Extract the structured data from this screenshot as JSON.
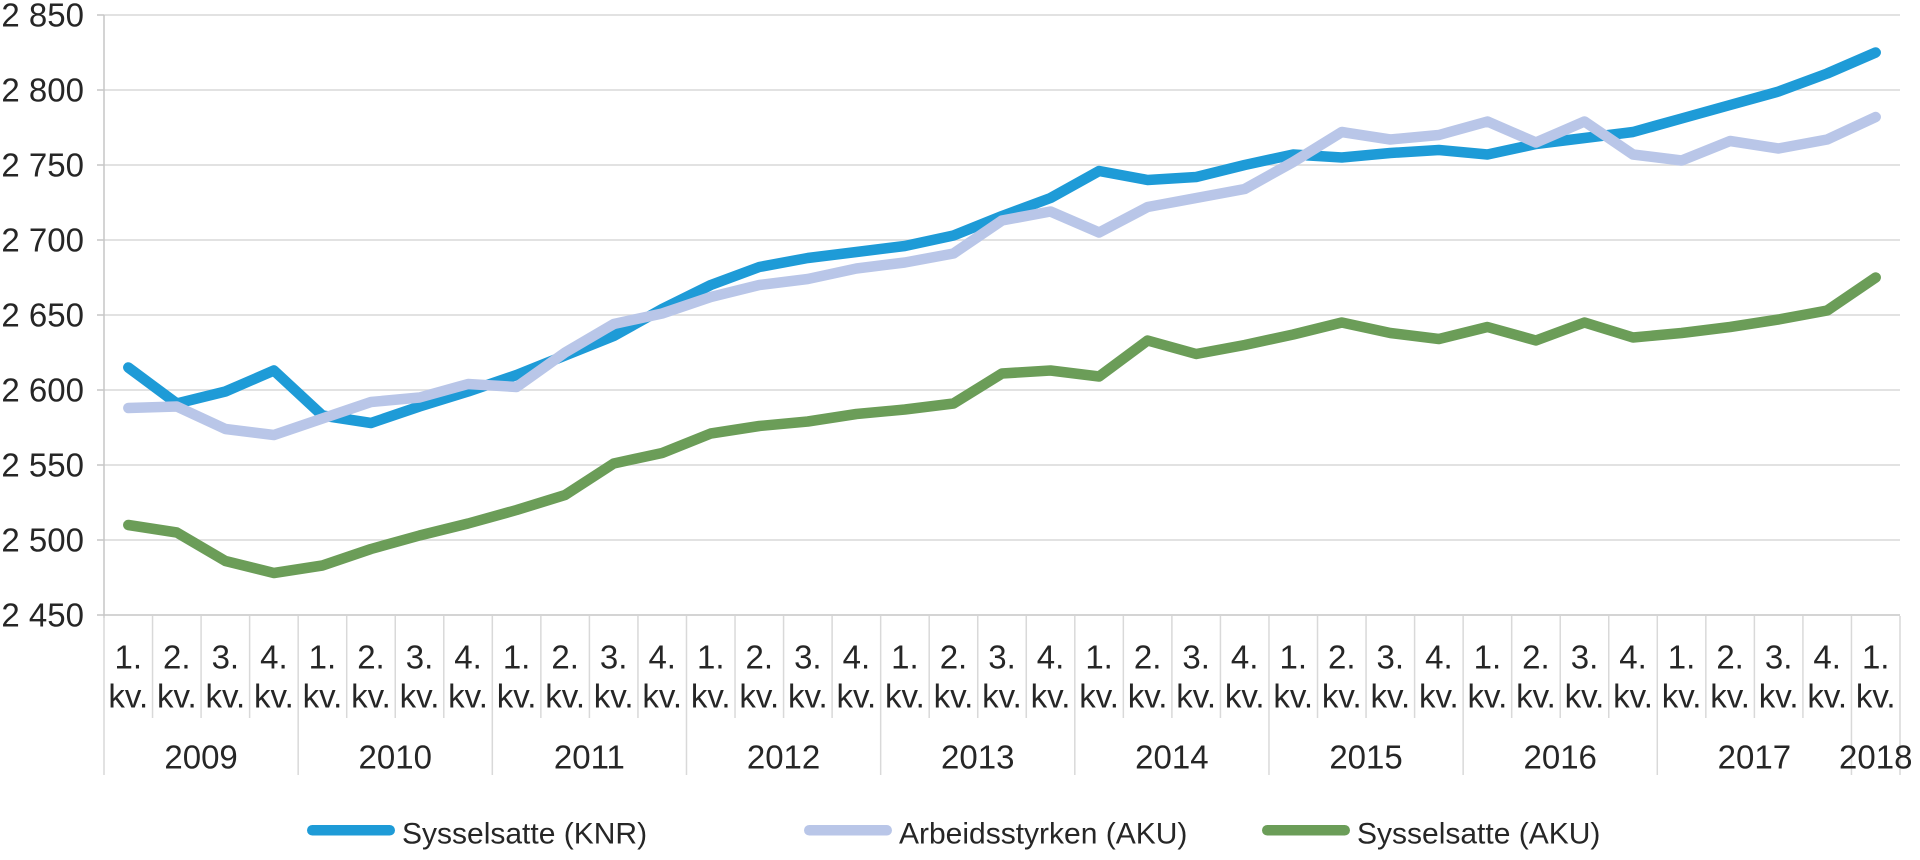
{
  "page": {
    "background": "#ffffff"
  },
  "styles": {
    "grid_color": "#d9d9d9",
    "axis_color": "#c6c6c6",
    "text_color": "#262626",
    "series_stroke_width": 10.5
  },
  "legend": {
    "items": [
      {
        "label": "Sysselsatte (KNR)",
        "color": "#1e9bd7"
      },
      {
        "label": "Arbeidsstyrken (AKU)",
        "color": "#b9c6e8"
      },
      {
        "label": "Sysselsatte (AKU)",
        "color": "#6b9d58"
      }
    ]
  },
  "chart_data": {
    "type": "line",
    "title": "",
    "xlabel": "",
    "ylabel": "",
    "ylim": [
      2450,
      2850
    ],
    "ytick_step": 50,
    "ytick_labels": [
      "2 450",
      "2 500",
      "2 550",
      "2 600",
      "2 650",
      "2 700",
      "2 750",
      "2 800",
      "2 850"
    ],
    "grid": true,
    "legend_position": "bottom",
    "x_axis": {
      "quarter_top_labels": [
        "1.",
        "2.",
        "3.",
        "4.",
        "1.",
        "2.",
        "3.",
        "4.",
        "1.",
        "2.",
        "3.",
        "4.",
        "1.",
        "2.",
        "3.",
        "4.",
        "1.",
        "2.",
        "3.",
        "4.",
        "1.",
        "2.",
        "3.",
        "4.",
        "1.",
        "2.",
        "3.",
        "4.",
        "1.",
        "2.",
        "3.",
        "4.",
        "1.",
        "2.",
        "3.",
        "4.",
        "1."
      ],
      "quarter_bottom_label": "kv.",
      "years": [
        {
          "label": "2009",
          "quarters": 4
        },
        {
          "label": "2010",
          "quarters": 4
        },
        {
          "label": "2011",
          "quarters": 4
        },
        {
          "label": "2012",
          "quarters": 4
        },
        {
          "label": "2013",
          "quarters": 4
        },
        {
          "label": "2014",
          "quarters": 4
        },
        {
          "label": "2015",
          "quarters": 4
        },
        {
          "label": "2016",
          "quarters": 4
        },
        {
          "label": "2017",
          "quarters": 4
        },
        {
          "label": "2018",
          "quarters": 1
        }
      ]
    },
    "categories": [
      "2009 1. kv.",
      "2009 2. kv.",
      "2009 3. kv.",
      "2009 4. kv.",
      "2010 1. kv.",
      "2010 2. kv.",
      "2010 3. kv.",
      "2010 4. kv.",
      "2011 1. kv.",
      "2011 2. kv.",
      "2011 3. kv.",
      "2011 4. kv.",
      "2012 1. kv.",
      "2012 2. kv.",
      "2012 3. kv.",
      "2012 4. kv.",
      "2013 1. kv.",
      "2013 2. kv.",
      "2013 3. kv.",
      "2013 4. kv.",
      "2014 1. kv.",
      "2014 2. kv.",
      "2014 3. kv.",
      "2014 4. kv.",
      "2015 1. kv.",
      "2015 2. kv.",
      "2015 3. kv.",
      "2015 4. kv.",
      "2016 1. kv.",
      "2016 2. kv.",
      "2016 3. kv.",
      "2016 4. kv.",
      "2017 1. kv.",
      "2017 2. kv.",
      "2017 3. kv.",
      "2017 4. kv.",
      "2018 1. kv."
    ],
    "series": [
      {
        "name": "Sysselsatte (KNR)",
        "color": "#1e9bd7",
        "values": [
          2615,
          2591,
          2599,
          2613,
          2583,
          2578,
          2589,
          2599,
          2610,
          2623,
          2636,
          2654,
          2670,
          2682,
          2688,
          2692,
          2696,
          2703,
          2716,
          2728,
          2746,
          2740,
          2742,
          2750,
          2757,
          2755,
          2758,
          2760,
          2757,
          2764,
          2768,
          2772,
          2781,
          2790,
          2799,
          2811,
          2825
        ]
      },
      {
        "name": "Arbeidsstyrken (AKU)",
        "color": "#b9c6e8",
        "values": [
          2588,
          2589,
          2574,
          2570,
          2581,
          2592,
          2595,
          2604,
          2602,
          2625,
          2644,
          2651,
          2662,
          2670,
          2674,
          2681,
          2685,
          2691,
          2713,
          2719,
          2705,
          2722,
          2728,
          2734,
          2752,
          2772,
          2767,
          2770,
          2779,
          2765,
          2779,
          2757,
          2753,
          2766,
          2761,
          2767,
          2782
        ]
      },
      {
        "name": "Sysselsatte (AKU)",
        "color": "#6b9d58",
        "values": [
          2510,
          2505,
          2486,
          2478,
          2483,
          2494,
          2503,
          2511,
          2520,
          2530,
          2551,
          2558,
          2571,
          2576,
          2579,
          2584,
          2587,
          2591,
          2611,
          2613,
          2609,
          2633,
          2624,
          2630,
          2637,
          2645,
          2638,
          2634,
          2642,
          2633,
          2645,
          2635,
          2638,
          2642,
          2647,
          2653,
          2675
        ]
      }
    ]
  }
}
